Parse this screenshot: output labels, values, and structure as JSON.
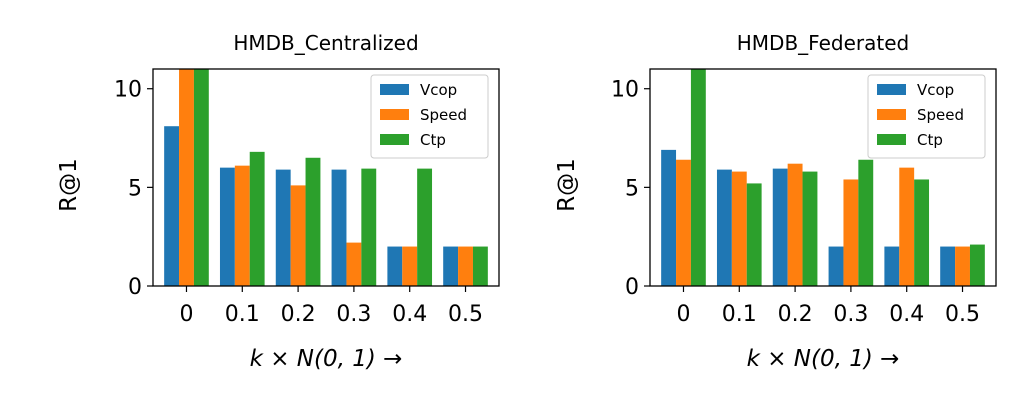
{
  "colors": {
    "Vcop": "#1f77b4",
    "Speed": "#ff7f0e",
    "Ctp": "#2ca02c"
  },
  "chart_data": [
    {
      "type": "bar",
      "title": "HMDB_Centralized",
      "xlabel": "k × N(0, 1) →",
      "ylabel": "R@1",
      "categories": [
        "0",
        "0.1",
        "0.2",
        "0.3",
        "0.4",
        "0.5"
      ],
      "ylim": [
        0,
        11
      ],
      "yticks": [
        "0",
        "5",
        "10"
      ],
      "legend_position": "top-right",
      "series": [
        {
          "name": "Vcop",
          "values": [
            8.1,
            6.0,
            5.9,
            5.9,
            2.0,
            2.0
          ]
        },
        {
          "name": "Speed",
          "values": [
            11.5,
            6.1,
            5.1,
            2.2,
            2.0,
            2.0
          ]
        },
        {
          "name": "Ctp",
          "values": [
            11.5,
            6.8,
            6.5,
            5.95,
            5.95,
            2.0
          ]
        }
      ]
    },
    {
      "type": "bar",
      "title": "HMDB_Federated",
      "xlabel": "k × N(0, 1) →",
      "ylabel": "R@1",
      "categories": [
        "0",
        "0.1",
        "0.2",
        "0.3",
        "0.4",
        "0.5"
      ],
      "ylim": [
        0,
        11
      ],
      "yticks": [
        "0",
        "5",
        "10"
      ],
      "legend_position": "top-right",
      "series": [
        {
          "name": "Vcop",
          "values": [
            6.9,
            5.9,
            5.95,
            2.0,
            2.0,
            2.0
          ]
        },
        {
          "name": "Speed",
          "values": [
            6.4,
            5.8,
            6.2,
            5.4,
            6.0,
            2.0
          ]
        },
        {
          "name": "Ctp",
          "values": [
            11.5,
            5.2,
            5.8,
            6.4,
            5.4,
            2.1
          ]
        }
      ]
    }
  ]
}
